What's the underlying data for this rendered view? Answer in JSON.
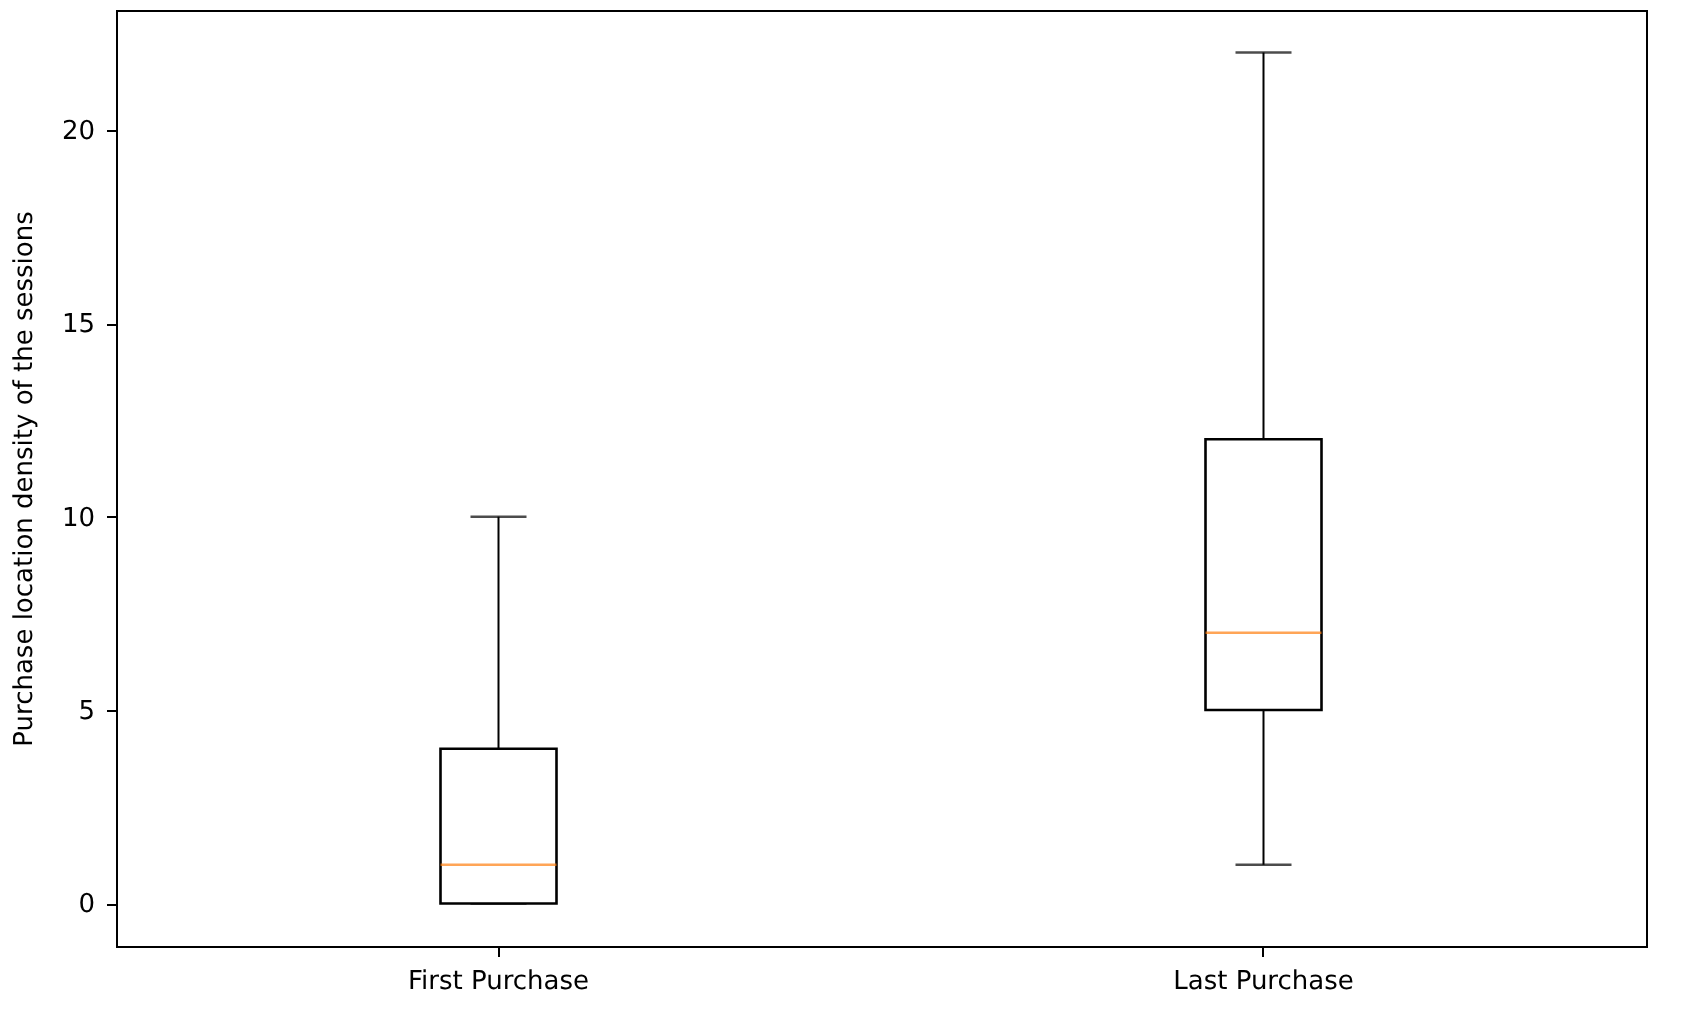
{
  "chart_data": {
    "type": "box",
    "ylabel": "Purchase location density of the sessions",
    "categories": [
      "First Purchase",
      "Last Purchase"
    ],
    "boxes": [
      {
        "low": 0,
        "q1": 0,
        "median": 1,
        "q3": 4,
        "high": 10
      },
      {
        "low": 1,
        "q1": 5,
        "median": 7,
        "q3": 12,
        "high": 22
      }
    ],
    "ylim": [
      -1.1,
      23.1
    ],
    "yticks": [
      0,
      5,
      10,
      15,
      20
    ],
    "grid": false
  }
}
